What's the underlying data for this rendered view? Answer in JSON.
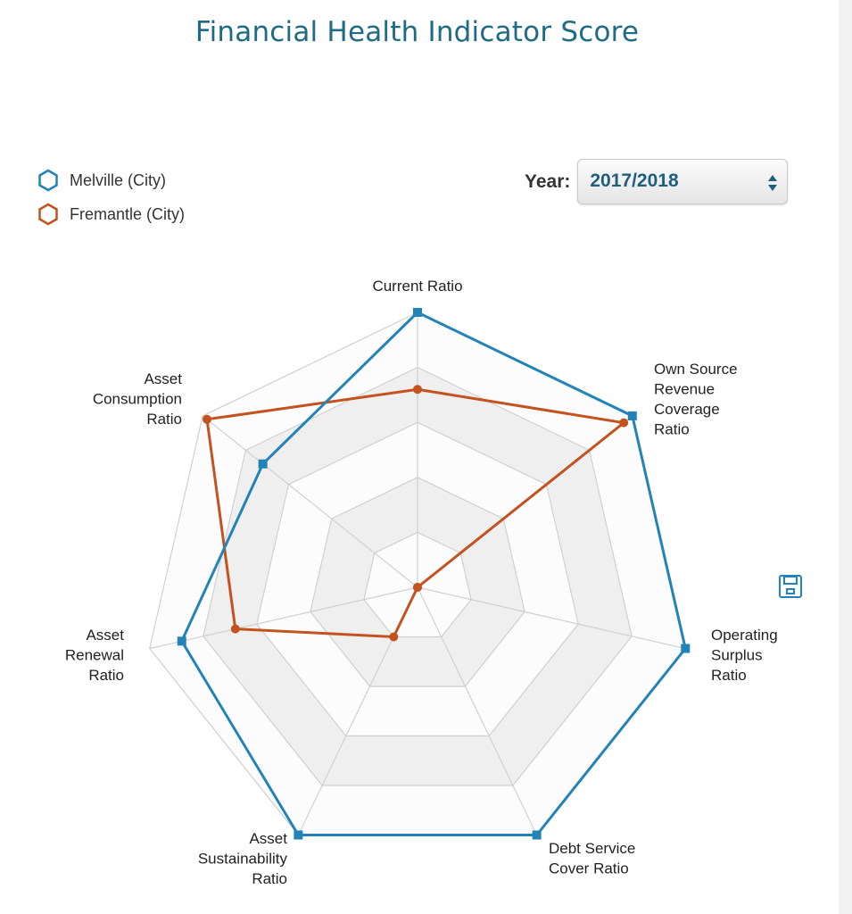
{
  "title": "Financial Health Indicator Score",
  "legend": [
    {
      "label": "Melville (City)",
      "color": "#2283b8",
      "icon": "hexagon-outline-icon"
    },
    {
      "label": "Fremantle (City)",
      "color": "#c4521e",
      "icon": "hexagon-outline-icon"
    }
  ],
  "year_selector": {
    "label": "Year:",
    "selected": "2017/2018"
  },
  "icons": {
    "save": "save-disk-icon",
    "select_arrows": "up-down-arrows-icon"
  },
  "chart_data": {
    "type": "radar",
    "title": "Financial Health Indicator Score",
    "categories": [
      "Current Ratio",
      "Own Source Revenue Coverage Ratio",
      "Operating Surplus Ratio",
      "Debt Service Cover Ratio",
      "Asset Sustainability Ratio",
      "Asset Renewal Ratio",
      "Asset Consumption Ratio"
    ],
    "series": [
      {
        "name": "Melville (City)",
        "color": "#2283b8",
        "marker": "square",
        "values": [
          100,
          100,
          100,
          100,
          100,
          88,
          72
        ]
      },
      {
        "name": "Fremantle (City)",
        "color": "#c4521e",
        "marker": "circle",
        "values": [
          72,
          96,
          0,
          0,
          20,
          68,
          98
        ]
      }
    ],
    "rings": 5,
    "range": [
      0,
      100
    ],
    "grid": true,
    "legend_position": "top-left"
  }
}
